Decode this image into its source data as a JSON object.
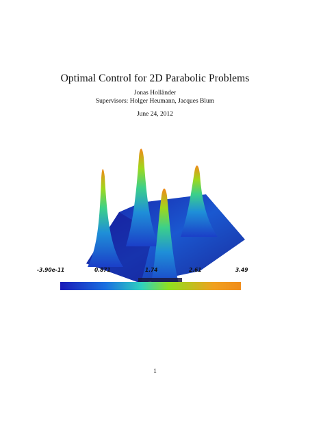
{
  "document": {
    "title": "Optimal Control for 2D Parabolic Problems",
    "author": "Jonas Holländer",
    "supervisors": "Supervisors: Holger Heumann, Jacques Blum",
    "date": "June 24, 2012",
    "page_number": "1"
  },
  "figure": {
    "colorbar_ticks": [
      "-3.90e-11",
      "0.871",
      "1.74",
      "2.61",
      "3.49"
    ],
    "colormap": [
      "#1a1ab8",
      "#1a6fe0",
      "#2fd1c0",
      "#8fe020",
      "#f0a020",
      "#f08c1a"
    ]
  }
}
